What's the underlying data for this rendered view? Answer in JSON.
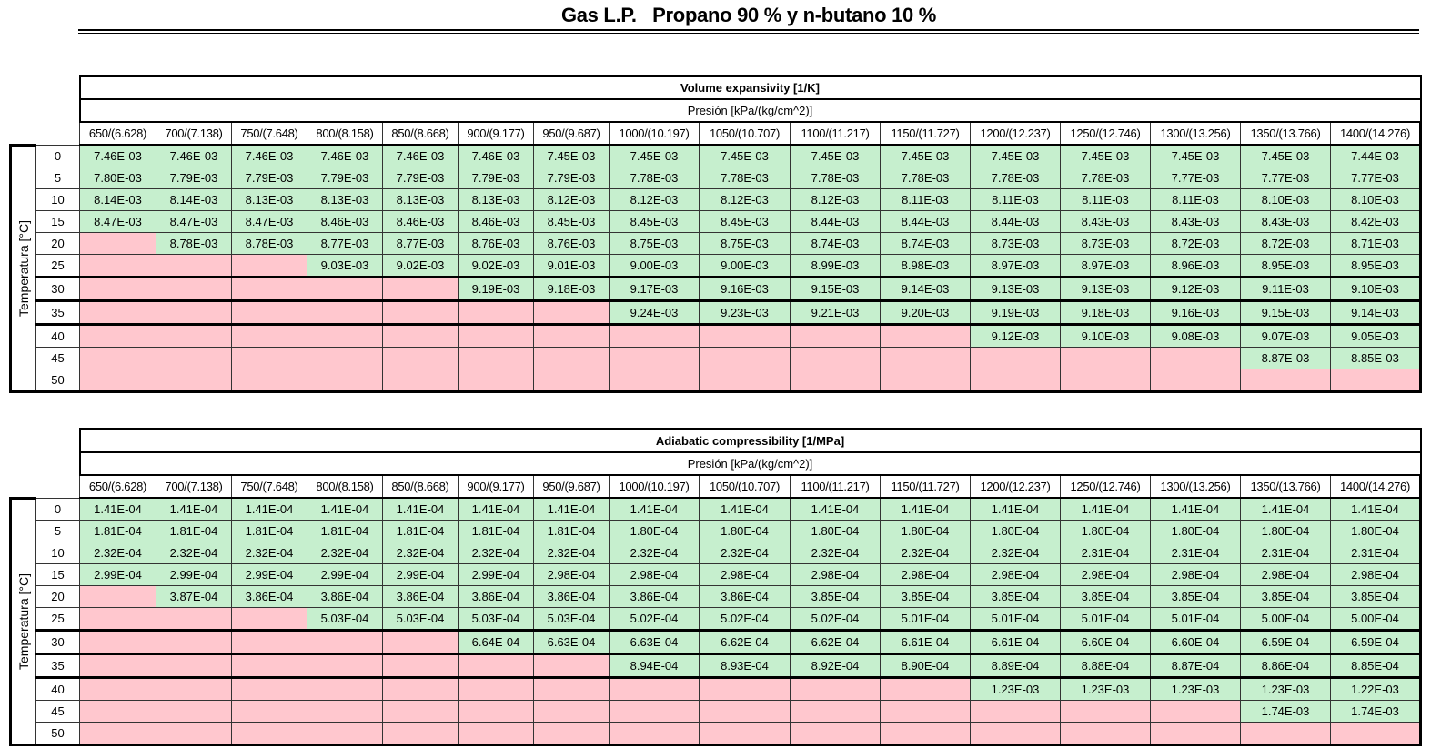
{
  "title": "Gas L.P.   Propano 90 % y n-butano 10 %",
  "colors": {
    "has_value": "#c6efce",
    "no_value": "#ffc7ce"
  },
  "tables": [
    {
      "title": "Volume expansivity   [1/K]",
      "pressure_label": "Presión [kPa/(kg/cm^2)]",
      "temperature_label": "Temperatura [°C]",
      "columns": [
        "650/(6.628)",
        "700/(7.138)",
        "750/(7.648)",
        "800/(8.158)",
        "850/(8.668)",
        "900/(9.177)",
        "950/(9.687)",
        "1000/(10.197)",
        "1050/(10.707)",
        "1100/(11.217)",
        "1150/(11.727)",
        "1200/(12.237)",
        "1250/(12.746)",
        "1300/(13.256)",
        "1350/(13.766)",
        "1400/(14.276)"
      ],
      "rows": [
        {
          "temp": "0",
          "values": [
            "7.46E-03",
            "7.46E-03",
            "7.46E-03",
            "7.46E-03",
            "7.46E-03",
            "7.46E-03",
            "7.45E-03",
            "7.45E-03",
            "7.45E-03",
            "7.45E-03",
            "7.45E-03",
            "7.45E-03",
            "7.45E-03",
            "7.45E-03",
            "7.45E-03",
            "7.44E-03"
          ]
        },
        {
          "temp": "5",
          "values": [
            "7.80E-03",
            "7.79E-03",
            "7.79E-03",
            "7.79E-03",
            "7.79E-03",
            "7.79E-03",
            "7.79E-03",
            "7.78E-03",
            "7.78E-03",
            "7.78E-03",
            "7.78E-03",
            "7.78E-03",
            "7.78E-03",
            "7.77E-03",
            "7.77E-03",
            "7.77E-03"
          ]
        },
        {
          "temp": "10",
          "values": [
            "8.14E-03",
            "8.14E-03",
            "8.13E-03",
            "8.13E-03",
            "8.13E-03",
            "8.13E-03",
            "8.12E-03",
            "8.12E-03",
            "8.12E-03",
            "8.12E-03",
            "8.11E-03",
            "8.11E-03",
            "8.11E-03",
            "8.11E-03",
            "8.10E-03",
            "8.10E-03"
          ]
        },
        {
          "temp": "15",
          "values": [
            "8.47E-03",
            "8.47E-03",
            "8.47E-03",
            "8.46E-03",
            "8.46E-03",
            "8.46E-03",
            "8.45E-03",
            "8.45E-03",
            "8.45E-03",
            "8.44E-03",
            "8.44E-03",
            "8.44E-03",
            "8.43E-03",
            "8.43E-03",
            "8.43E-03",
            "8.42E-03"
          ]
        },
        {
          "temp": "20",
          "values": [
            null,
            "8.78E-03",
            "8.78E-03",
            "8.77E-03",
            "8.77E-03",
            "8.76E-03",
            "8.76E-03",
            "8.75E-03",
            "8.75E-03",
            "8.74E-03",
            "8.74E-03",
            "8.73E-03",
            "8.73E-03",
            "8.72E-03",
            "8.72E-03",
            "8.71E-03"
          ]
        },
        {
          "temp": "25",
          "values": [
            null,
            null,
            null,
            "9.03E-03",
            "9.02E-03",
            "9.02E-03",
            "9.01E-03",
            "9.00E-03",
            "9.00E-03",
            "8.99E-03",
            "8.98E-03",
            "8.97E-03",
            "8.97E-03",
            "8.96E-03",
            "8.95E-03",
            "8.95E-03"
          ]
        },
        {
          "temp": "30",
          "values": [
            null,
            null,
            null,
            null,
            null,
            "9.19E-03",
            "9.18E-03",
            "9.17E-03",
            "9.16E-03",
            "9.15E-03",
            "9.14E-03",
            "9.13E-03",
            "9.13E-03",
            "9.12E-03",
            "9.11E-03",
            "9.10E-03"
          ]
        },
        {
          "temp": "35",
          "values": [
            null,
            null,
            null,
            null,
            null,
            null,
            null,
            "9.24E-03",
            "9.23E-03",
            "9.21E-03",
            "9.20E-03",
            "9.19E-03",
            "9.18E-03",
            "9.16E-03",
            "9.15E-03",
            "9.14E-03"
          ]
        },
        {
          "temp": "40",
          "values": [
            null,
            null,
            null,
            null,
            null,
            null,
            null,
            null,
            null,
            null,
            null,
            "9.12E-03",
            "9.10E-03",
            "9.08E-03",
            "9.07E-03",
            "9.05E-03"
          ]
        },
        {
          "temp": "45",
          "values": [
            null,
            null,
            null,
            null,
            null,
            null,
            null,
            null,
            null,
            null,
            null,
            null,
            null,
            null,
            "8.87E-03",
            "8.85E-03"
          ]
        },
        {
          "temp": "50",
          "values": [
            null,
            null,
            null,
            null,
            null,
            null,
            null,
            null,
            null,
            null,
            null,
            null,
            null,
            null,
            null,
            null
          ]
        }
      ]
    },
    {
      "title": "Adiabatic compressibility         [1/MPa]",
      "pressure_label": "Presión [kPa/(kg/cm^2)]",
      "temperature_label": "Temperatura [°C]",
      "columns": [
        "650/(6.628)",
        "700/(7.138)",
        "750/(7.648)",
        "800/(8.158)",
        "850/(8.668)",
        "900/(9.177)",
        "950/(9.687)",
        "1000/(10.197)",
        "1050/(10.707)",
        "1100/(11.217)",
        "1150/(11.727)",
        "1200/(12.237)",
        "1250/(12.746)",
        "1300/(13.256)",
        "1350/(13.766)",
        "1400/(14.276)"
      ],
      "rows": [
        {
          "temp": "0",
          "values": [
            "1.41E-04",
            "1.41E-04",
            "1.41E-04",
            "1.41E-04",
            "1.41E-04",
            "1.41E-04",
            "1.41E-04",
            "1.41E-04",
            "1.41E-04",
            "1.41E-04",
            "1.41E-04",
            "1.41E-04",
            "1.41E-04",
            "1.41E-04",
            "1.41E-04",
            "1.41E-04"
          ]
        },
        {
          "temp": "5",
          "values": [
            "1.81E-04",
            "1.81E-04",
            "1.81E-04",
            "1.81E-04",
            "1.81E-04",
            "1.81E-04",
            "1.81E-04",
            "1.80E-04",
            "1.80E-04",
            "1.80E-04",
            "1.80E-04",
            "1.80E-04",
            "1.80E-04",
            "1.80E-04",
            "1.80E-04",
            "1.80E-04"
          ]
        },
        {
          "temp": "10",
          "values": [
            "2.32E-04",
            "2.32E-04",
            "2.32E-04",
            "2.32E-04",
            "2.32E-04",
            "2.32E-04",
            "2.32E-04",
            "2.32E-04",
            "2.32E-04",
            "2.32E-04",
            "2.32E-04",
            "2.32E-04",
            "2.31E-04",
            "2.31E-04",
            "2.31E-04",
            "2.31E-04"
          ]
        },
        {
          "temp": "15",
          "values": [
            "2.99E-04",
            "2.99E-04",
            "2.99E-04",
            "2.99E-04",
            "2.99E-04",
            "2.99E-04",
            "2.98E-04",
            "2.98E-04",
            "2.98E-04",
            "2.98E-04",
            "2.98E-04",
            "2.98E-04",
            "2.98E-04",
            "2.98E-04",
            "2.98E-04",
            "2.98E-04"
          ]
        },
        {
          "temp": "20",
          "values": [
            null,
            "3.87E-04",
            "3.86E-04",
            "3.86E-04",
            "3.86E-04",
            "3.86E-04",
            "3.86E-04",
            "3.86E-04",
            "3.86E-04",
            "3.85E-04",
            "3.85E-04",
            "3.85E-04",
            "3.85E-04",
            "3.85E-04",
            "3.85E-04",
            "3.85E-04"
          ]
        },
        {
          "temp": "25",
          "values": [
            null,
            null,
            null,
            "5.03E-04",
            "5.03E-04",
            "5.03E-04",
            "5.03E-04",
            "5.02E-04",
            "5.02E-04",
            "5.02E-04",
            "5.01E-04",
            "5.01E-04",
            "5.01E-04",
            "5.01E-04",
            "5.00E-04",
            "5.00E-04"
          ]
        },
        {
          "temp": "30",
          "values": [
            null,
            null,
            null,
            null,
            null,
            "6.64E-04",
            "6.63E-04",
            "6.63E-04",
            "6.62E-04",
            "6.62E-04",
            "6.61E-04",
            "6.61E-04",
            "6.60E-04",
            "6.60E-04",
            "6.59E-04",
            "6.59E-04"
          ]
        },
        {
          "temp": "35",
          "values": [
            null,
            null,
            null,
            null,
            null,
            null,
            null,
            "8.94E-04",
            "8.93E-04",
            "8.92E-04",
            "8.90E-04",
            "8.89E-04",
            "8.88E-04",
            "8.87E-04",
            "8.86E-04",
            "8.85E-04"
          ]
        },
        {
          "temp": "40",
          "values": [
            null,
            null,
            null,
            null,
            null,
            null,
            null,
            null,
            null,
            null,
            null,
            "1.23E-03",
            "1.23E-03",
            "1.23E-03",
            "1.23E-03",
            "1.22E-03"
          ]
        },
        {
          "temp": "45",
          "values": [
            null,
            null,
            null,
            null,
            null,
            null,
            null,
            null,
            null,
            null,
            null,
            null,
            null,
            null,
            "1.74E-03",
            "1.74E-03"
          ]
        },
        {
          "temp": "50",
          "values": [
            null,
            null,
            null,
            null,
            null,
            null,
            null,
            null,
            null,
            null,
            null,
            null,
            null,
            null,
            null,
            null
          ]
        }
      ]
    }
  ]
}
